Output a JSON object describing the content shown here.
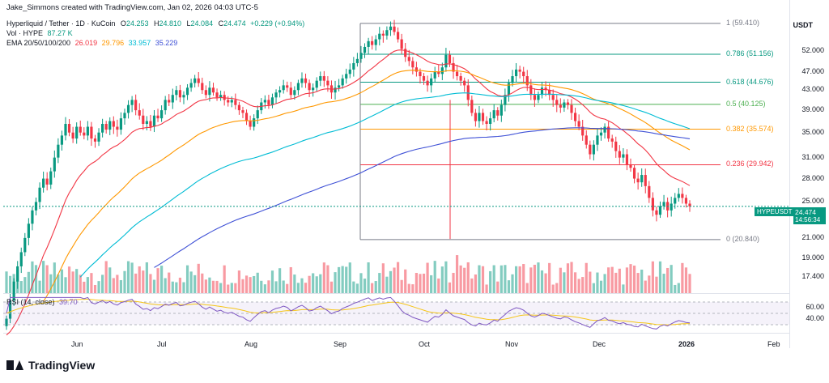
{
  "credit": "Jake_Simmons created with TradingView.com, Jan 02, 2026 04:03 UTC-5",
  "symbol_line": "Hyperliquid / Tether · 1D · KuCoin",
  "ohlc": {
    "o_label": "O",
    "o": "24.253",
    "h_label": "H",
    "h": "24.810",
    "l_label": "L",
    "l": "24.084",
    "c_label": "C",
    "c": "24.474",
    "chg": "+0.229 (+0.94%)"
  },
  "volume_line": {
    "label": "Vol · HYPE",
    "value": "87.27 K"
  },
  "ema_line": {
    "label": "EMA 20/50/100/200",
    "ema20": "26.019",
    "ema50": "29.796",
    "ema100": "33.957",
    "ema200": "35.229"
  },
  "rsi_line": {
    "label": "RSI (14, close)",
    "value": "39.70"
  },
  "currency": "USDT",
  "price_tag": {
    "symbol": "HYPEUSDT",
    "price": "24.474",
    "countdown": "14:56:34"
  },
  "y_ticks": [
    "52.000",
    "47.000",
    "43.000",
    "39.000",
    "35.000",
    "31.000",
    "28.000",
    "25.000",
    "23.000",
    "21.000",
    "19.000",
    "17.400"
  ],
  "rsi_ticks": [
    "60.00",
    "40.00"
  ],
  "x_ticks": [
    "Jun",
    "Jul",
    "Aug",
    "Sep",
    "Oct",
    "Nov",
    "Dec",
    "2026",
    "Feb"
  ],
  "fib_levels": [
    {
      "label": "1 (59.410)",
      "color": "#787b86"
    },
    {
      "label": "0.786 (51.156)",
      "color": "#089981"
    },
    {
      "label": "0.618 (44.676)",
      "color": "#089981"
    },
    {
      "label": "0.5 (40.125)",
      "color": "#4caf50"
    },
    {
      "label": "0.382 (35.574)",
      "color": "#ff9800"
    },
    {
      "label": "0.236 (29.942)",
      "color": "#f23645"
    },
    {
      "label": "0 (20.840)",
      "color": "#787b86"
    }
  ],
  "brand": "TradingView",
  "colors": {
    "up": "#089981",
    "down": "#f23645",
    "ema20": "#f23645",
    "ema50": "#ff9800",
    "ema100": "#00bcd4",
    "ema200": "#3f51d6",
    "rsi": "#7e57c2",
    "rsi_ma": "#f5c518"
  },
  "chart_data": {
    "type": "candlestick",
    "x_labels": [
      "Jun",
      "Jul",
      "Aug",
      "Sep",
      "Oct",
      "Nov",
      "Dec",
      "2026",
      "Feb"
    ],
    "y_axis_labels": [
      "17.400",
      "19.000",
      "21.000",
      "23.000",
      "25.000",
      "28.000",
      "31.000",
      "35.000",
      "39.000",
      "43.000",
      "47.000",
      "52.000"
    ],
    "last_close": 24.474,
    "fibonacci": [
      {
        "ratio": 1,
        "price": 59.41
      },
      {
        "ratio": 0.786,
        "price": 51.156
      },
      {
        "ratio": 0.618,
        "price": 44.676
      },
      {
        "ratio": 0.5,
        "price": 40.125
      },
      {
        "ratio": 0.382,
        "price": 35.574
      },
      {
        "ratio": 0.236,
        "price": 29.942
      },
      {
        "ratio": 0,
        "price": 20.84
      }
    ],
    "closes": [
      14.2,
      15.5,
      17.0,
      18.3,
      19.6,
      21.0,
      22.5,
      24.0,
      25.0,
      26.8,
      28.0,
      27.2,
      29.0,
      31.0,
      33.0,
      34.5,
      36.5,
      35.0,
      34.0,
      36.0,
      35.0,
      34.5,
      36.0,
      34.0,
      33.5,
      35.0,
      36.5,
      35.5,
      37.0,
      36.0,
      35.5,
      37.5,
      38.5,
      40.0,
      41.0,
      39.0,
      38.0,
      36.5,
      37.0,
      36.0,
      38.0,
      37.5,
      39.0,
      41.0,
      40.5,
      42.0,
      43.0,
      41.5,
      42.0,
      43.5,
      44.5,
      45.5,
      44.5,
      43.0,
      42.0,
      43.5,
      42.5,
      41.5,
      42.0,
      41.0,
      40.5,
      41.0,
      40.0,
      39.0,
      38.5,
      37.0,
      36.0,
      37.5,
      39.0,
      40.5,
      41.0,
      40.0,
      41.5,
      42.5,
      43.0,
      44.0,
      43.5,
      42.0,
      43.0,
      44.5,
      45.5,
      44.5,
      43.0,
      43.5,
      45.0,
      46.0,
      45.0,
      44.0,
      42.5,
      43.5,
      44.0,
      45.5,
      46.5,
      47.5,
      49.0,
      50.0,
      51.5,
      53.0,
      54.5,
      53.5,
      55.0,
      56.5,
      56.0,
      57.5,
      58.5,
      57.0,
      55.0,
      52.5,
      50.5,
      49.5,
      48.0,
      47.0,
      46.0,
      45.0,
      44.0,
      45.5,
      47.0,
      46.5,
      48.0,
      51.0,
      49.0,
      47.0,
      46.0,
      45.0,
      44.0,
      41.0,
      38.5,
      37.0,
      38.5,
      37.0,
      36.5,
      37.5,
      39.0,
      38.0,
      40.0,
      42.0,
      44.5,
      46.0,
      47.5,
      47.0,
      46.0,
      44.0,
      42.0,
      41.0,
      42.0,
      43.5,
      43.0,
      42.0,
      41.0,
      40.0,
      39.5,
      40.5,
      40.0,
      38.5,
      37.0,
      36.0,
      34.5,
      33.0,
      31.5,
      33.0,
      34.5,
      35.0,
      36.0,
      34.0,
      33.5,
      32.0,
      31.0,
      31.5,
      30.0,
      29.5,
      28.0,
      27.5,
      28.5,
      27.0,
      25.5,
      24.0,
      23.5,
      24.5,
      25.0,
      24.0,
      24.8,
      25.5,
      26.0,
      25.5,
      24.8,
      24.474
    ],
    "ema20_end": 26.019,
    "ema50_end": 29.796,
    "ema100_end": 33.957,
    "ema200_end": 35.229,
    "rsi_end": 39.7,
    "grid": true
  }
}
